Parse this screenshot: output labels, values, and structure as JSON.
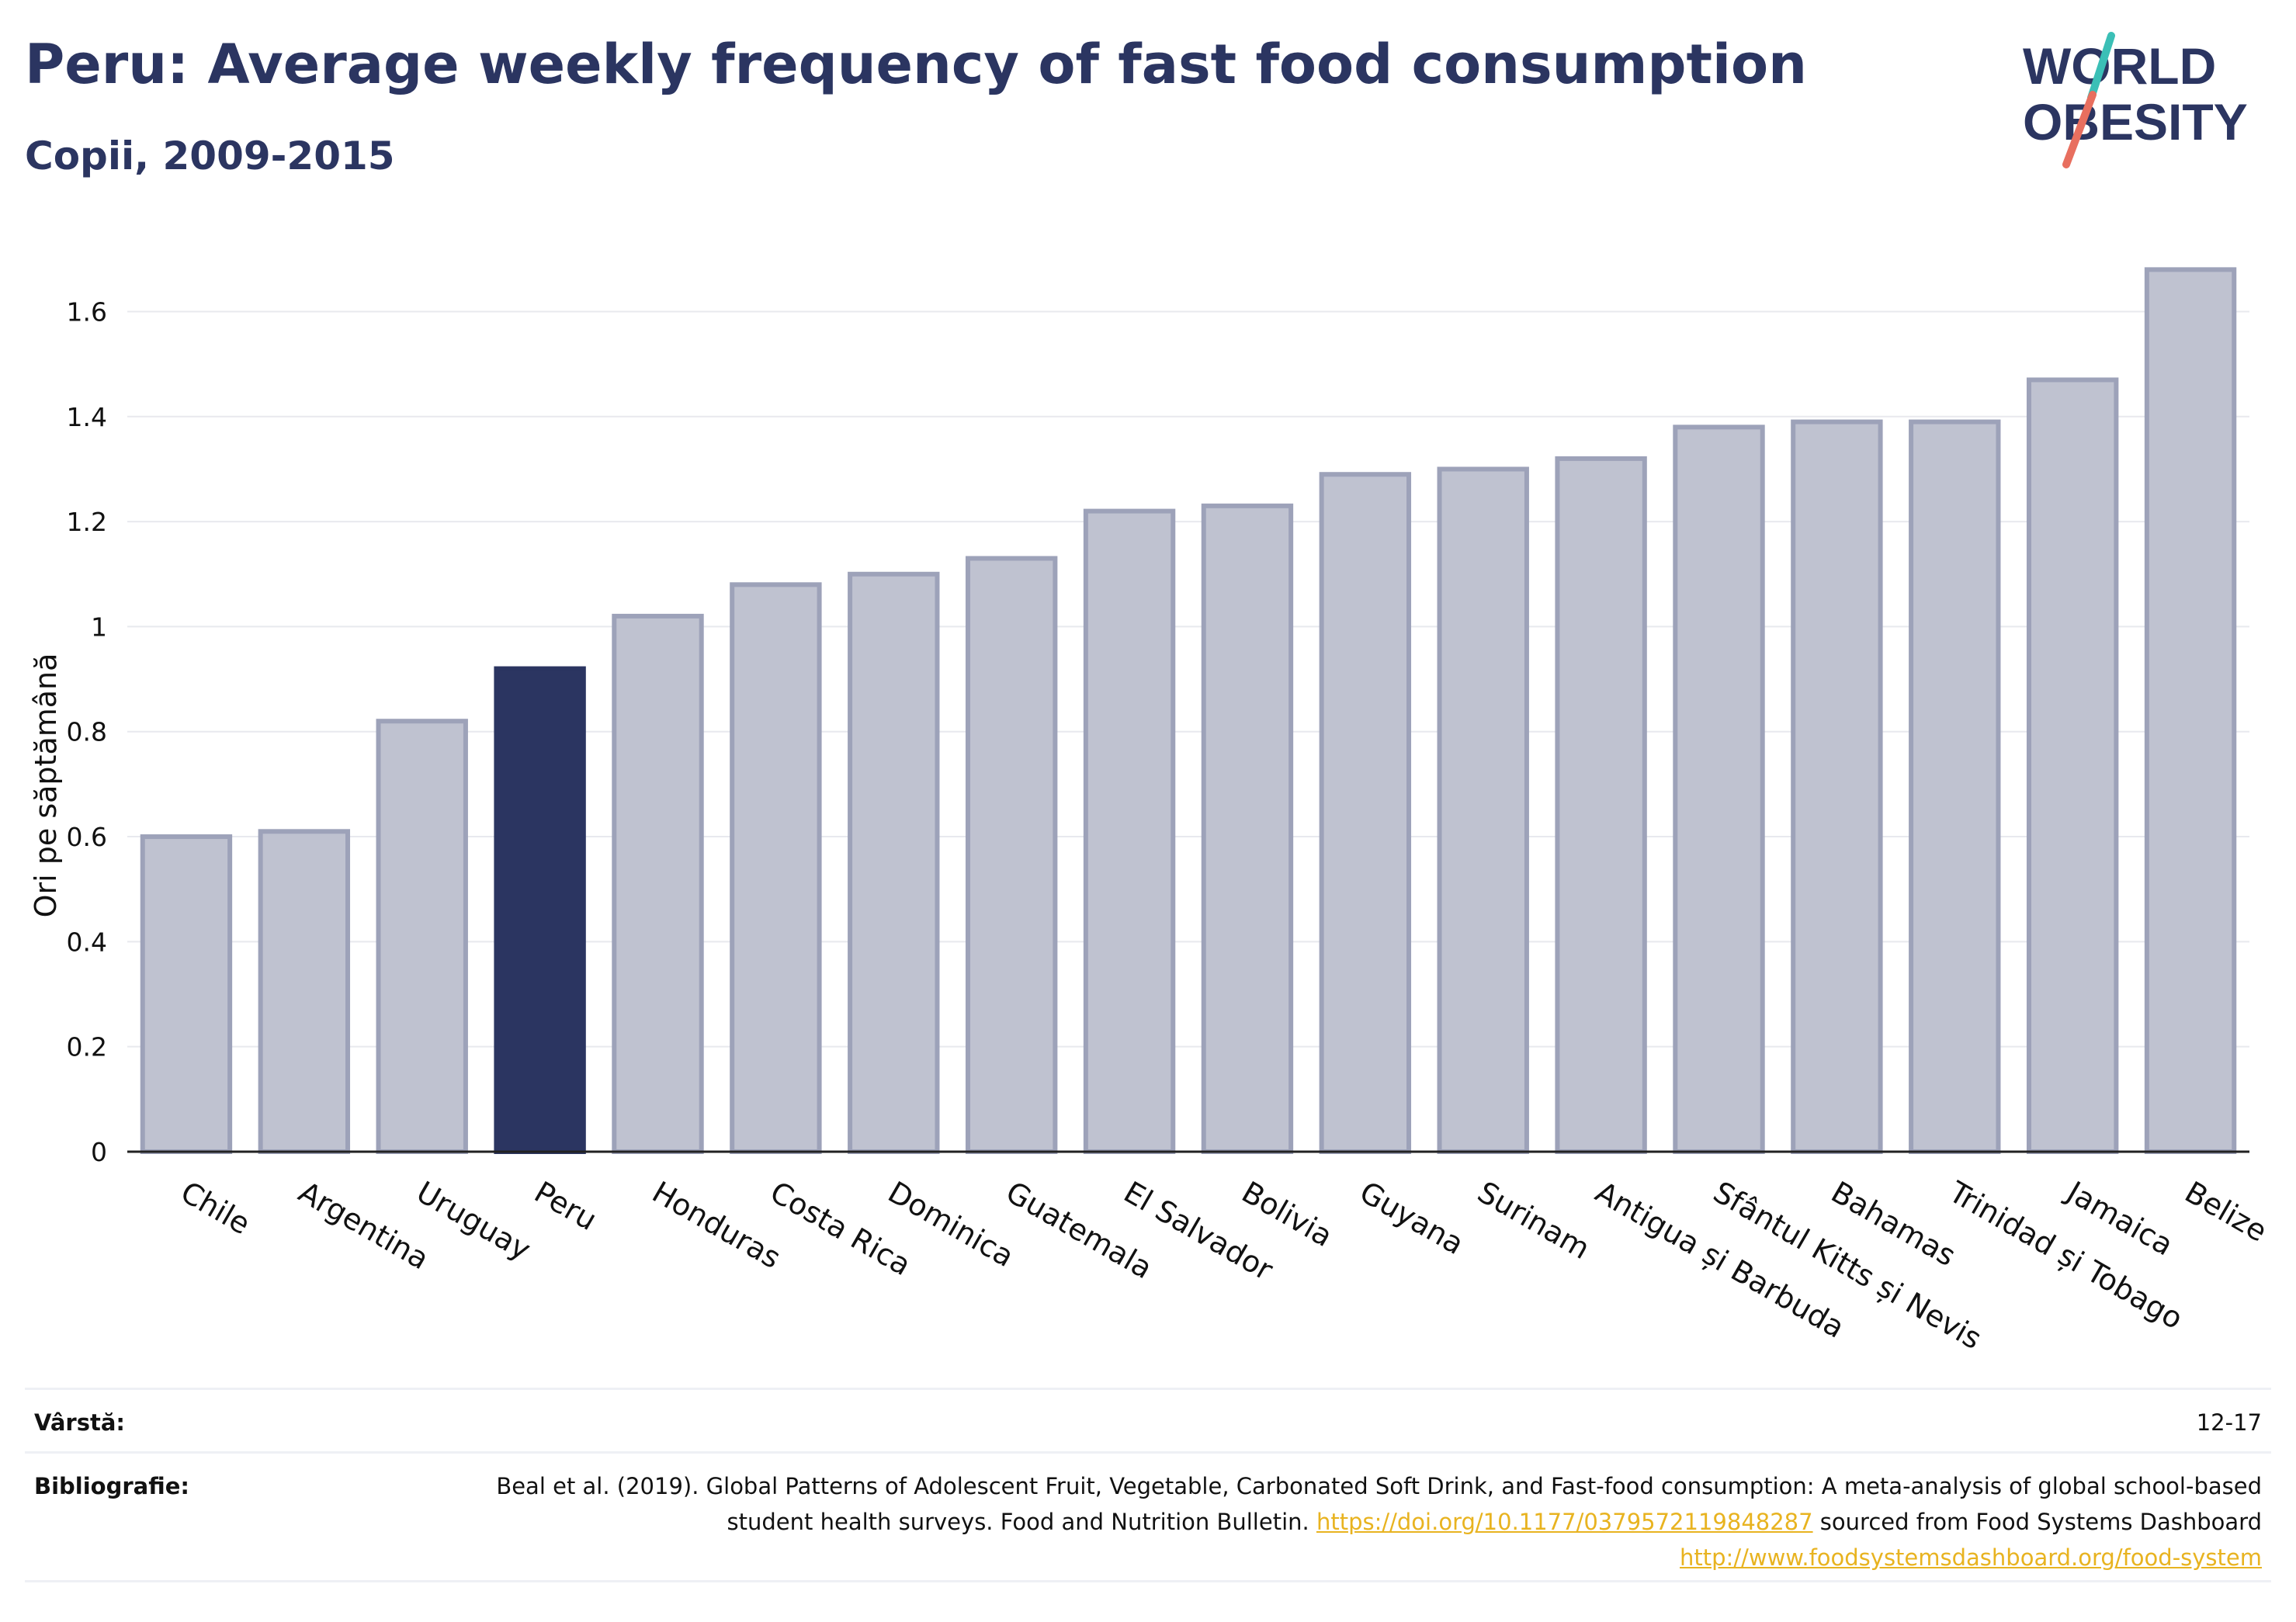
{
  "header": {
    "title": "Peru: Average weekly frequency of fast food consumption",
    "subtitle": "Copii, 2009-2015"
  },
  "logo": {
    "line1": "WORLD",
    "line2": "OBESITY",
    "colors": {
      "text": "#2b3561",
      "slash_top": "#3bbfb6",
      "slash_bottom": "#e86f5f"
    }
  },
  "chart_data": {
    "type": "bar",
    "ylabel": "Ori pe săptămână",
    "ylim": [
      0,
      1.75
    ],
    "yticks": [
      0,
      0.2,
      0.4,
      0.6,
      0.8,
      1,
      1.2,
      1.4,
      1.6
    ],
    "ytick_labels": [
      "0",
      "0.2",
      "0.4",
      "0.6",
      "0.8",
      "1",
      "1.2",
      "1.4",
      "1.6"
    ],
    "grid": true,
    "highlight": "Peru",
    "colors": {
      "bar": "#bfc2d0",
      "bar_edge": "#9da2b9",
      "highlight": "#2b3561",
      "grid": "#e8e9ee",
      "axis": "#222222"
    },
    "categories": [
      "Chile",
      "Argentina",
      "Uruguay",
      "Peru",
      "Honduras",
      "Costa Rica",
      "Dominica",
      "Guatemala",
      "El Salvador",
      "Bolivia",
      "Guyana",
      "Surinam",
      "Antigua și Barbuda",
      "Sfântul Kitts și Nevis",
      "Bahamas",
      "Trinidad și Tobago",
      "Jamaica",
      "Belize"
    ],
    "values": [
      0.6,
      0.61,
      0.82,
      0.92,
      1.02,
      1.08,
      1.1,
      1.13,
      1.22,
      1.23,
      1.29,
      1.3,
      1.32,
      1.38,
      1.39,
      1.39,
      1.47,
      1.68
    ]
  },
  "footer": {
    "age_label": "Vârstă:",
    "age_value": "12-17",
    "biblio_label": "Bibliografie:",
    "biblio_text1": "Beal et al. (2019). Global Patterns of Adolescent Fruit, Vegetable, Carbonated Soft Drink, and Fast-food consumption: A meta-analysis of global school-based student health surveys. Food and Nutrition Bulletin. ",
    "biblio_link1": "https://doi.org/10.1177/0379572119848287",
    "biblio_text2": " sourced from Food Systems Dashboard ",
    "biblio_link2": "http://www.foodsystemsdashboard.org/food-system"
  }
}
